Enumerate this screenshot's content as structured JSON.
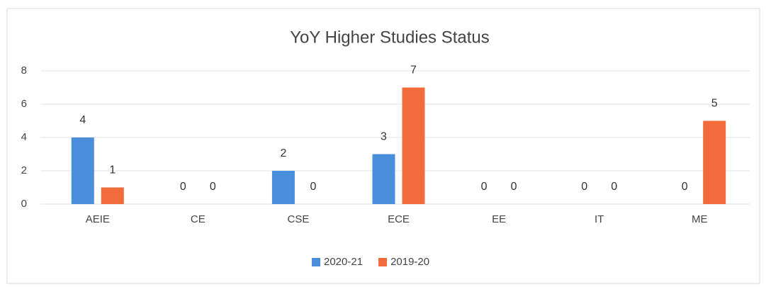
{
  "chart_data": {
    "type": "bar",
    "title": "YoY Higher Studies Status",
    "categories": [
      "AEIE",
      "CE",
      "CSE",
      "ECE",
      "EE",
      "IT",
      "ME"
    ],
    "series": [
      {
        "name": "2020-21",
        "color": "#4a8fdc",
        "values": [
          4,
          0,
          2,
          3,
          0,
          0,
          0
        ]
      },
      {
        "name": "2019-20",
        "color": "#f26b3a",
        "values": [
          1,
          0,
          0,
          7,
          0,
          0,
          5
        ]
      }
    ],
    "ylim": [
      0,
      8
    ],
    "yticks": [
      0,
      2,
      4,
      6,
      8
    ],
    "grid": true,
    "legend": "bottom"
  }
}
